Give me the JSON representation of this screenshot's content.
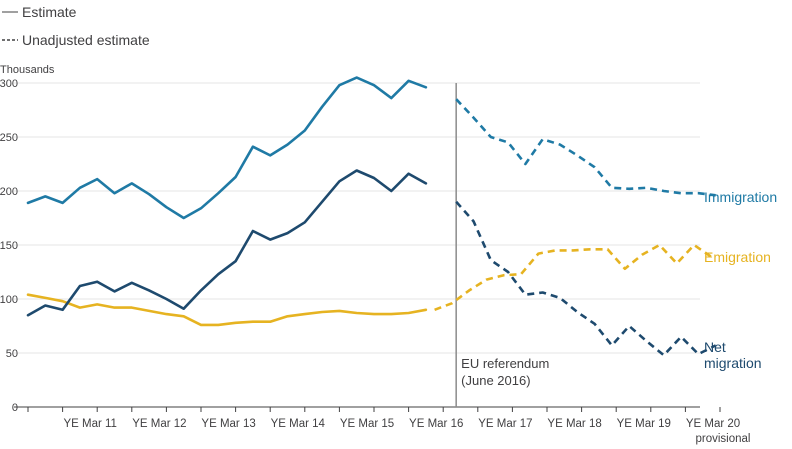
{
  "chart_data": {
    "type": "line",
    "title": "",
    "ylabel": "Thousands",
    "xlabel": "",
    "ylim": [
      0,
      300
    ],
    "yticks": [
      0,
      50,
      100,
      150,
      200,
      250,
      300
    ],
    "x_count": 37,
    "xticks": [
      {
        "index": 4,
        "label": "YE Mar 11"
      },
      {
        "index": 8,
        "label": "YE Mar 12"
      },
      {
        "index": 12,
        "label": "YE Mar 13"
      },
      {
        "index": 16,
        "label": "YE Mar 14"
      },
      {
        "index": 20,
        "label": "YE Mar 15"
      },
      {
        "index": 24,
        "label": "YE Mar 16"
      },
      {
        "index": 28,
        "label": "YE Mar 17"
      },
      {
        "index": 32,
        "label": "YE Mar 18"
      },
      {
        "index": 36,
        "label": "YE Mar 19"
      },
      {
        "index": 40,
        "label": "YE Mar 20",
        "sublabel": "provisional"
      }
    ],
    "legend": [
      {
        "label": "Estimate",
        "style": "solid"
      },
      {
        "label": "Unadjusted estimate",
        "style": "dashed"
      }
    ],
    "annotation": {
      "line1": "EU referendum",
      "line2": "(June 2016)",
      "index": 24.75
    },
    "series": [
      {
        "name": "Immigration",
        "label": "Immigration",
        "color": "#1f7aa5",
        "estimate": [
          189,
          195,
          189,
          203,
          211,
          198,
          207,
          197,
          185,
          175,
          184,
          198,
          213,
          241,
          233,
          243,
          256,
          278,
          298,
          305,
          298,
          286,
          302,
          296
        ],
        "estimate_start": 0,
        "unadjusted": [
          285,
          268,
          250,
          245,
          225,
          248,
          243,
          233,
          222,
          203,
          202,
          203,
          200,
          198,
          198,
          196
        ],
        "unadjusted_start": 24.75
      },
      {
        "name": "Emigration",
        "label": "Emigration",
        "color": "#e6b321",
        "estimate": [
          104,
          101,
          98,
          92,
          95,
          92,
          92,
          89,
          86,
          84,
          76,
          76,
          78,
          79,
          79,
          84,
          86,
          88,
          89,
          87,
          86,
          86,
          87,
          90
        ],
        "estimate_start": 0,
        "unadjusted": [
          90,
          96,
          108,
          118,
          122,
          123,
          142,
          145,
          145,
          146,
          146,
          128,
          141,
          150,
          133,
          150,
          139
        ],
        "unadjusted_start": 23.5
      },
      {
        "name": "Net migration",
        "label_line1": "Net",
        "label_line2": "migration",
        "color": "#1e4a6e",
        "estimate": [
          85,
          94,
          90,
          112,
          116,
          107,
          115,
          108,
          100,
          91,
          108,
          123,
          135,
          163,
          155,
          161,
          171,
          190,
          209,
          219,
          212,
          200,
          216,
          207
        ],
        "estimate_start": 0,
        "unadjusted": [
          190,
          172,
          136,
          125,
          104,
          106,
          101,
          88,
          77,
          57,
          75,
          61,
          48,
          65,
          49,
          57
        ],
        "unadjusted_start": 24.75
      }
    ]
  }
}
